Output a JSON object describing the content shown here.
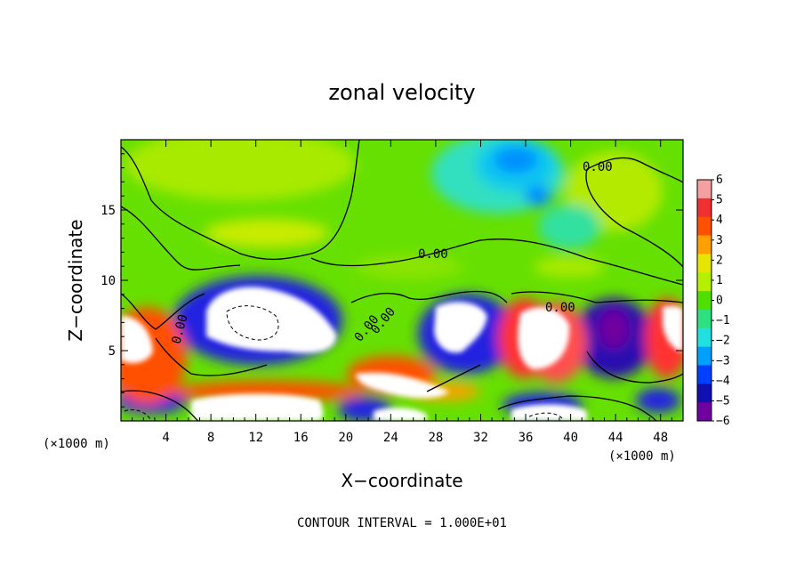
{
  "chart_data": {
    "type": "heatmap",
    "title": "zonal velocity",
    "xlabel": "X−coordinate",
    "ylabel": "Z−coordinate",
    "x_unit": "(×1000 m)",
    "x_unit_right": "(×1000 m)",
    "xlim": [
      0,
      50
    ],
    "ylim": [
      0,
      20
    ],
    "x_ticks": [
      4,
      8,
      12,
      16,
      20,
      24,
      28,
      32,
      36,
      40,
      44,
      48
    ],
    "y_ticks": [
      5,
      10,
      15
    ],
    "colorbar": {
      "levels": [
        6,
        5,
        4,
        3,
        2,
        1,
        0,
        -1,
        -2,
        -3,
        -4,
        -5,
        -6
      ],
      "labels": [
        "6",
        "5",
        "4",
        "3",
        "2",
        "1",
        "0",
        "−1",
        "−2",
        "−3",
        "−4",
        "−5",
        "−6"
      ],
      "colors": [
        "#f4a0a0",
        "#f03030",
        "#ff5000",
        "#ffa000",
        "#e6e600",
        "#b4f000",
        "#50e000",
        "#30e080",
        "#20e0e0",
        "#00a0ff",
        "#0040ff",
        "#1010b0",
        "#7000a0"
      ]
    },
    "contour_labels": [
      "0.00",
      "0.00",
      "0.00",
      "0.00",
      "0.00",
      "0.00"
    ],
    "note": "CONTOUR INTERVAL =  1.000E+01"
  }
}
